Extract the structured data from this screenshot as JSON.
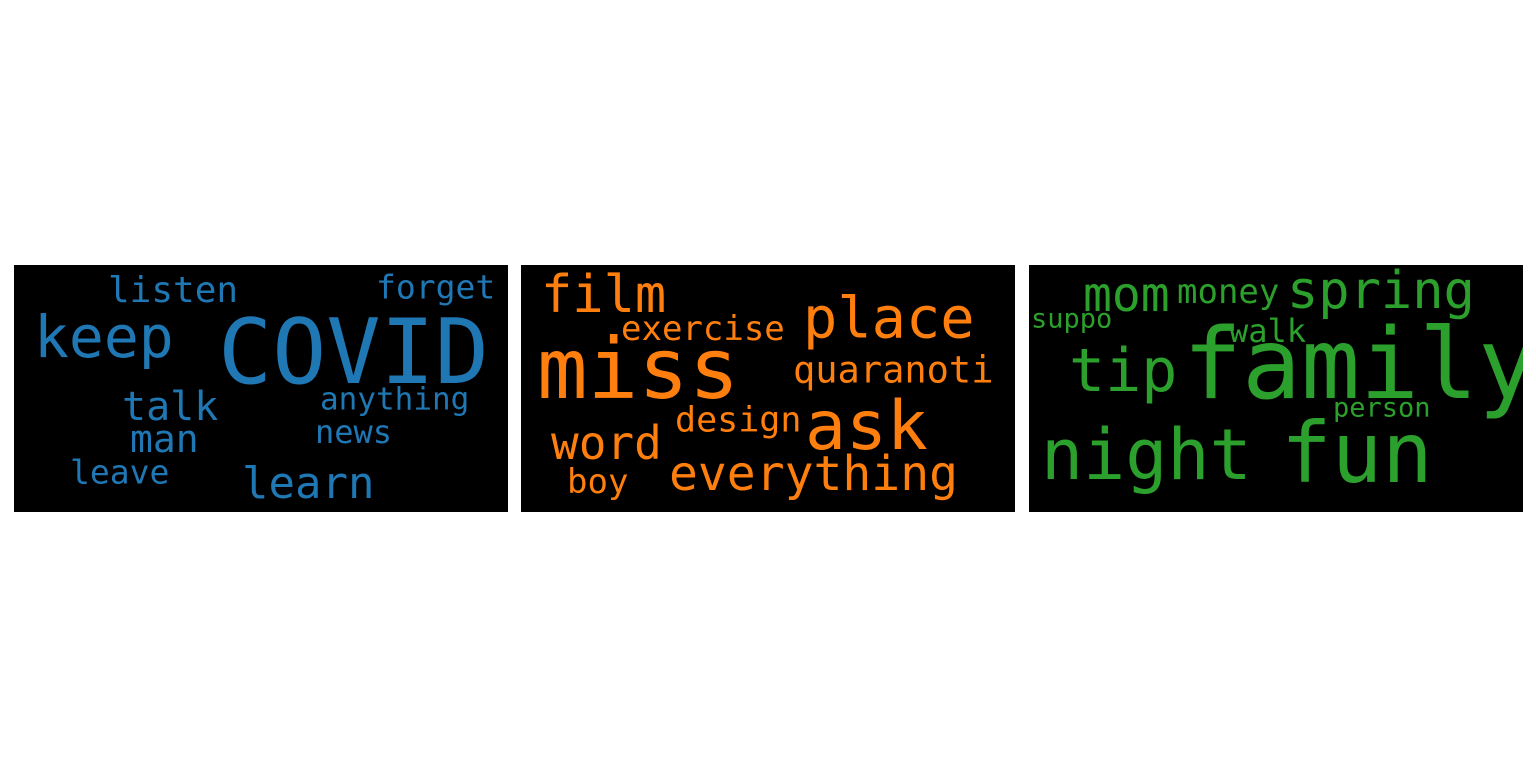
{
  "clouds": [
    {
      "color": "#1f77b4",
      "words": [
        "COVID",
        "keep",
        "listen",
        "forget",
        "talk",
        "anything",
        "man",
        "news",
        "leave",
        "learn"
      ]
    },
    {
      "color": "#ff7f0e",
      "words": [
        "miss",
        "film",
        "place",
        "exercise",
        "quaranoti",
        "ask",
        "design",
        "word",
        "everything",
        "boy"
      ]
    },
    {
      "color": "#2ca02c",
      "words": [
        "family",
        "fun",
        "night",
        "tip",
        "spring",
        "mom",
        "money",
        "suppo",
        "walk",
        "person"
      ]
    }
  ]
}
